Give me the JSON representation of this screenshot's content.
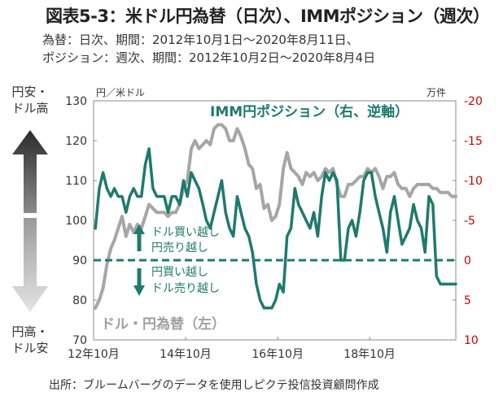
{
  "title": "図表5-3：米ドル円為替（日次）、IMMポジション（週次）",
  "subtitle_1": "為替：日次、期間：2012年10月1日～2020年8月11日、",
  "subtitle_2": "ポジション：週次、期間：2012年10月2日～2020年8月4日",
  "source": "出所：ブルームバーグのデータを使用しピクテ投信投資顧問作成",
  "chart_data": {
    "type": "line",
    "left_unit": "円／米ドル",
    "right_unit": "万件",
    "left_axis_label_top": [
      "円安・",
      "ドル高"
    ],
    "left_axis_label_bottom": [
      "円高・",
      "ドル安"
    ],
    "ylim_left": [
      70,
      130
    ],
    "yticks_left": [
      "130",
      "120",
      "110",
      "100",
      "90",
      "80",
      "70"
    ],
    "ylim_right": [
      10,
      -20
    ],
    "yticks_right": [
      "-20",
      "-15",
      "-10",
      "-5",
      "0",
      "5",
      "10"
    ],
    "xticks": [
      "12年10月",
      "14年10月",
      "16年10月",
      "18年10月"
    ],
    "annotations": {
      "imm_label": "IMM円ポジション（右、逆軸）",
      "fx_label": "ドル・円為替（左）",
      "above_zero": [
        "ドル買い越し",
        "円売り越し"
      ],
      "below_zero": [
        "円買い越し",
        "ドル売り越し"
      ]
    },
    "colors": {
      "fx": "#a6a6a6",
      "imm": "#1f7a6e",
      "zero_line": "#1f7a6e",
      "arrow_up": "#3a3a3a",
      "arrow_down": "#c8c8c8"
    },
    "series": [
      {
        "key": "fx",
        "dates": [
          "2012-10",
          "2012-11",
          "2012-12",
          "2013-01",
          "2013-02",
          "2013-03",
          "2013-04",
          "2013-05",
          "2013-06",
          "2013-07",
          "2013-08",
          "2013-09",
          "2013-10",
          "2013-11",
          "2013-12",
          "2014-01",
          "2014-02",
          "2014-03",
          "2014-04",
          "2014-05",
          "2014-06",
          "2014-07",
          "2014-08",
          "2014-09",
          "2014-10",
          "2014-11",
          "2014-12",
          "2015-01",
          "2015-02",
          "2015-03",
          "2015-04",
          "2015-05",
          "2015-06",
          "2015-07",
          "2015-08",
          "2015-09",
          "2015-10",
          "2015-11",
          "2015-12",
          "2016-01",
          "2016-02",
          "2016-03",
          "2016-04",
          "2016-05",
          "2016-06",
          "2016-07",
          "2016-08",
          "2016-09",
          "2016-10",
          "2016-11",
          "2016-12",
          "2017-01",
          "2017-02",
          "2017-03",
          "2017-04",
          "2017-05",
          "2017-06",
          "2017-07",
          "2017-08",
          "2017-09",
          "2017-10",
          "2017-11",
          "2017-12",
          "2018-01",
          "2018-02",
          "2018-03",
          "2018-04",
          "2018-05",
          "2018-06",
          "2018-07",
          "2018-08",
          "2018-09",
          "2018-10",
          "2018-11",
          "2018-12",
          "2019-01",
          "2019-02",
          "2019-03",
          "2019-04",
          "2019-05",
          "2019-06",
          "2019-07",
          "2019-08",
          "2019-09",
          "2019-10",
          "2019-11",
          "2019-12",
          "2020-01",
          "2020-02",
          "2020-03",
          "2020-04",
          "2020-05",
          "2020-06",
          "2020-07",
          "2020-08"
        ],
        "values": [
          78,
          80,
          83,
          89,
          93,
          95,
          98,
          101,
          96,
          99,
          97,
          99,
          98,
          101,
          104,
          103,
          102,
          102,
          102,
          101,
          102,
          102,
          104,
          108,
          110,
          118,
          120,
          118,
          119,
          120,
          119,
          123,
          124,
          124,
          123,
          120,
          120,
          123,
          121,
          118,
          114,
          113,
          108,
          109,
          103,
          104,
          100,
          101,
          104,
          113,
          117,
          113,
          112,
          111,
          109,
          112,
          111,
          112,
          110,
          111,
          113,
          112,
          113,
          109,
          106,
          106,
          109,
          109,
          110,
          111,
          111,
          113,
          112,
          113,
          111,
          108,
          111,
          111,
          112,
          109,
          108,
          108,
          106,
          108,
          109,
          109,
          109,
          109,
          108,
          108,
          107,
          107,
          107,
          106,
          106
        ]
      },
      {
        "key": "imm",
        "dates": [
          "2012-10",
          "2012-11",
          "2012-12",
          "2013-01",
          "2013-02",
          "2013-03",
          "2013-04",
          "2013-05",
          "2013-06",
          "2013-07",
          "2013-08",
          "2013-09",
          "2013-10",
          "2013-11",
          "2013-12",
          "2014-01",
          "2014-02",
          "2014-03",
          "2014-04",
          "2014-05",
          "2014-06",
          "2014-07",
          "2014-08",
          "2014-09",
          "2014-10",
          "2014-11",
          "2014-12",
          "2015-01",
          "2015-02",
          "2015-03",
          "2015-04",
          "2015-05",
          "2015-06",
          "2015-07",
          "2015-08",
          "2015-09",
          "2015-10",
          "2015-11",
          "2015-12",
          "2016-01",
          "2016-02",
          "2016-03",
          "2016-04",
          "2016-05",
          "2016-06",
          "2016-07",
          "2016-08",
          "2016-09",
          "2016-10",
          "2016-11",
          "2016-12",
          "2017-01",
          "2017-02",
          "2017-03",
          "2017-04",
          "2017-05",
          "2017-06",
          "2017-07",
          "2017-08",
          "2017-09",
          "2017-10",
          "2017-11",
          "2017-12",
          "2018-01",
          "2018-02",
          "2018-03",
          "2018-04",
          "2018-05",
          "2018-06",
          "2018-07",
          "2018-08",
          "2018-09",
          "2018-10",
          "2018-11",
          "2018-12",
          "2019-01",
          "2019-02",
          "2019-03",
          "2019-04",
          "2019-05",
          "2019-06",
          "2019-07",
          "2019-08",
          "2019-09",
          "2019-10",
          "2019-11",
          "2019-12",
          "2020-01",
          "2020-02",
          "2020-03",
          "2020-04",
          "2020-05",
          "2020-06",
          "2020-07",
          "2020-08"
        ],
        "values": [
          -4,
          -9,
          -11,
          -9,
          -8,
          -9,
          -8,
          -8,
          -6,
          -8,
          -9,
          -8,
          -8,
          -12,
          -14,
          -9,
          -8,
          -8,
          -8,
          -6,
          -8,
          -8,
          -7,
          -10,
          -8,
          -11,
          -10,
          -9,
          -7,
          -5,
          -4,
          -6,
          -8,
          -10,
          -6,
          -4,
          -3,
          -8,
          -6,
          -4,
          -3,
          -1,
          3,
          5,
          6,
          6,
          6,
          5,
          3,
          4,
          -3,
          -4,
          -9,
          -7,
          -6,
          -5,
          -4,
          -6,
          -3,
          -8,
          -11,
          -10,
          -11,
          -10,
          0,
          0,
          -4,
          -5,
          -3,
          -6,
          -10,
          -11,
          -11,
          -8,
          -6,
          -4,
          -1,
          -6,
          -8,
          -5,
          -2,
          -3,
          -4,
          -7,
          -5,
          -4,
          -1,
          -8,
          -7,
          2,
          3,
          3,
          3,
          3,
          3
        ]
      }
    ]
  }
}
